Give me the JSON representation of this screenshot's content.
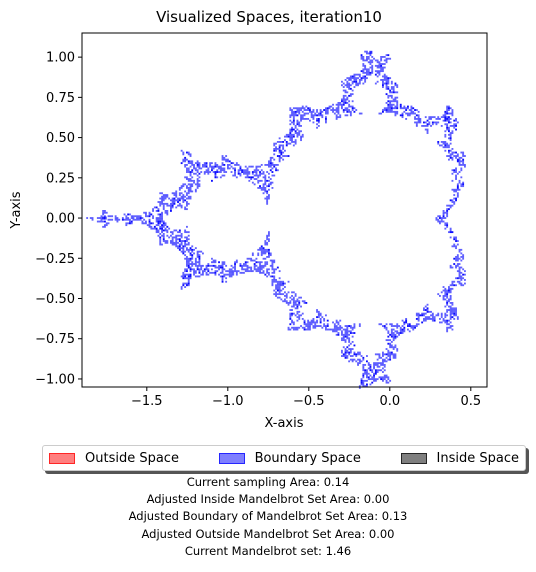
{
  "chart_data": {
    "type": "scatter",
    "title": "Visualized Spaces, iteration10",
    "xlabel": "X-axis",
    "ylabel": "Y-axis",
    "xlim": [
      -1.9,
      0.6
    ],
    "ylim": [
      -1.05,
      1.15
    ],
    "xticks": [
      -1.5,
      -1.0,
      -0.5,
      0.0,
      0.5
    ],
    "xtick_labels": [
      "−1.5",
      "−1.0",
      "−0.5",
      "0.0",
      "0.5"
    ],
    "yticks": [
      1.0,
      0.75,
      0.5,
      0.25,
      0.0,
      -0.25,
      -0.5,
      -0.75,
      -1.0
    ],
    "ytick_labels": [
      "1.00",
      "0.75",
      "0.50",
      "0.25",
      "0.00",
      "−0.25",
      "−0.50",
      "−0.75",
      "−1.00"
    ],
    "grid": false,
    "legend_placement": "bottom-center",
    "series": [
      {
        "name": "Outside Space",
        "color": "#ff0000",
        "points": []
      },
      {
        "name": "Boundary Space",
        "color": "#0000ff",
        "region": "Mandelbrot set boundary",
        "points": [
          [
            -1.77,
            0.0
          ],
          [
            -1.76,
            0.0
          ],
          [
            -0.12,
            1.03
          ]
        ]
      },
      {
        "name": "Inside Space",
        "color": "#000000",
        "points": []
      }
    ]
  },
  "stats": {
    "sampling_area": "Current sampling Area: 0.14",
    "inside_area": "Adjusted Inside Mandelbrot Set Area: 0.00",
    "boundary_area": "Adjusted Boundary of Mandelbrot Set Area: 0.13",
    "outside_area": "Adjusted Outside Mandelbrot Set Area: 0.00",
    "mandelbrot_set": "Current Mandelbrot set: 1.46"
  }
}
